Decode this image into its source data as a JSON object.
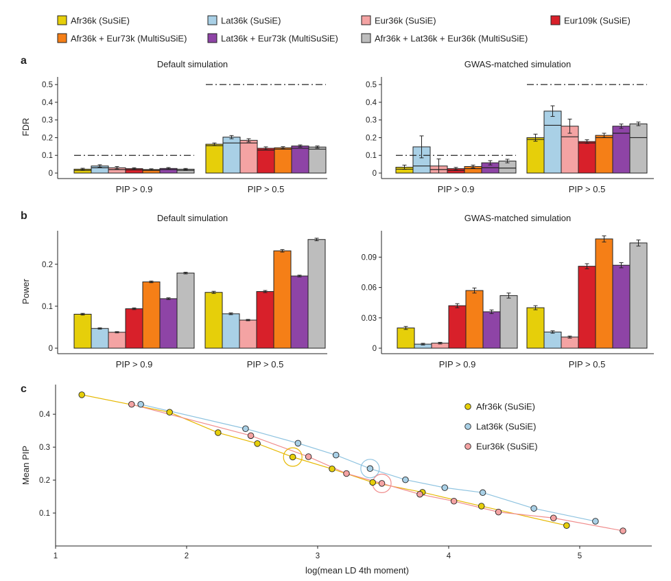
{
  "colors": {
    "afr_susie": "#e6cf0a",
    "lat_susie": "#a9d0e6",
    "eur36_susie": "#f4a3a3",
    "eur109_susie": "#d8202a",
    "afr_eur_multi": "#f57f17",
    "lat_eur_multi": "#8e44a6",
    "all_multi": "#bdbdbd"
  },
  "legend": {
    "items": [
      {
        "label": "Afr36k (SuSiE)",
        "color": "#e6cf0a"
      },
      {
        "label": "Lat36k (SuSiE)",
        "color": "#a9d0e6"
      },
      {
        "label": "Eur36k (SuSiE)",
        "color": "#f4a3a3"
      },
      {
        "label": "Eur109k (SuSiE)",
        "color": "#d8202a"
      },
      {
        "label": "Afr36k + Eur73k (MultiSuSiE)",
        "color": "#f57f17"
      },
      {
        "label": "Lat36k + Eur73k (MultiSuSiE)",
        "color": "#8e44a6"
      },
      {
        "label": "Afr36k + Lat36k + Eur36k (MultiSuSiE)",
        "color": "#bdbdbd"
      }
    ]
  },
  "panels": {
    "a": "a",
    "b": "b",
    "c": "c"
  },
  "chart_data": [
    {
      "id": "a-default",
      "type": "bar",
      "title": "Default simulation",
      "ylabel": "FDR",
      "ylim": [
        0,
        0.52
      ],
      "yticks": [
        "0",
        "0.1",
        "0.2",
        "0.3",
        "0.4",
        "0.5"
      ],
      "categories": [
        "PIP > 0.9",
        "PIP > 0.5"
      ],
      "thresholds": [
        0.1,
        0.5
      ],
      "series_values": [
        [
          0.022,
          0.04,
          0.03,
          0.025,
          0.02,
          0.026,
          0.022
        ],
        [
          0.163,
          0.203,
          0.185,
          0.14,
          0.143,
          0.153,
          0.147
        ]
      ],
      "errors": [
        [
          0.005,
          0.007,
          0.007,
          0.005,
          0.004,
          0.005,
          0.004
        ],
        [
          0.007,
          0.009,
          0.009,
          0.008,
          0.006,
          0.006,
          0.006
        ]
      ],
      "inner_lines": [
        [
          0.015,
          0.03,
          0.02,
          0.018,
          0.015,
          0.02,
          0.015
        ],
        [
          0.155,
          0.17,
          0.17,
          0.13,
          0.135,
          0.14,
          0.135
        ]
      ]
    },
    {
      "id": "a-gwas",
      "type": "bar",
      "title": "GWAS-matched simulation",
      "ylabel": "",
      "ylim": [
        0,
        0.52
      ],
      "yticks": [
        "0",
        "0.1",
        "0.2",
        "0.3",
        "0.4",
        "0.5"
      ],
      "categories": [
        "PIP > 0.9",
        "PIP > 0.5"
      ],
      "thresholds": [
        0.1,
        0.5
      ],
      "series_values": [
        [
          0.033,
          0.148,
          0.04,
          0.025,
          0.037,
          0.058,
          0.068
        ],
        [
          0.2,
          0.35,
          0.265,
          0.178,
          0.213,
          0.265,
          0.278
        ]
      ],
      "errors": [
        [
          0.012,
          0.062,
          0.04,
          0.007,
          0.008,
          0.012,
          0.01
        ],
        [
          0.02,
          0.03,
          0.04,
          0.01,
          0.012,
          0.012,
          0.01
        ]
      ],
      "inner_lines": [
        [
          0.022,
          0.04,
          0.02,
          0.015,
          0.025,
          0.03,
          0.028
        ],
        [
          0.19,
          0.27,
          0.205,
          0.17,
          0.2,
          0.225,
          0.2
        ]
      ]
    },
    {
      "id": "b-default",
      "type": "bar",
      "title": "Default simulation",
      "ylabel": "Power",
      "ylim": [
        0,
        0.27
      ],
      "yticks": [
        "0",
        "0.1",
        "0.2"
      ],
      "ytick_values": [
        0,
        0.1,
        0.2
      ],
      "categories": [
        "PIP > 0.9",
        "PIP > 0.5"
      ],
      "series_values": [
        [
          0.081,
          0.047,
          0.038,
          0.094,
          0.158,
          0.118,
          0.179
        ],
        [
          0.133,
          0.082,
          0.067,
          0.135,
          0.232,
          0.172,
          0.259
        ]
      ],
      "errors": [
        [
          0.002,
          0.0015,
          0.0015,
          0.002,
          0.002,
          0.002,
          0.002
        ],
        [
          0.0025,
          0.002,
          0.0015,
          0.0025,
          0.003,
          0.002,
          0.003
        ]
      ]
    },
    {
      "id": "b-gwas",
      "type": "bar",
      "title": "GWAS-matched simulation",
      "ylabel": "",
      "ylim": [
        0,
        0.112
      ],
      "yticks": [
        "0",
        "0.03",
        "0.06",
        "0.09"
      ],
      "ytick_values": [
        0,
        0.03,
        0.06,
        0.09
      ],
      "categories": [
        "PIP > 0.9",
        "PIP > 0.5"
      ],
      "series_values": [
        [
          0.02,
          0.004,
          0.005,
          0.042,
          0.057,
          0.036,
          0.052
        ],
        [
          0.04,
          0.016,
          0.011,
          0.081,
          0.108,
          0.082,
          0.104
        ]
      ],
      "errors": [
        [
          0.0015,
          0.0008,
          0.0008,
          0.002,
          0.0025,
          0.0018,
          0.0025
        ],
        [
          0.002,
          0.0012,
          0.001,
          0.0025,
          0.003,
          0.0025,
          0.003
        ]
      ]
    },
    {
      "id": "c-scatter",
      "type": "line",
      "xlabel": "log(mean LD 4th moment)",
      "ylabel": "Mean PIP",
      "xlim": [
        1,
        5.55
      ],
      "ylim": [
        0,
        0.49
      ],
      "xticks": [
        "1",
        "2",
        "3",
        "4",
        "5"
      ],
      "yticks": [
        "0.1",
        "0.2",
        "0.3",
        "0.4"
      ],
      "series": [
        {
          "name": "Afr36k (SuSiE)",
          "x": [
            1.2,
            1.87,
            2.24,
            2.54,
            2.81,
            3.11,
            3.42,
            3.8,
            4.25,
            4.9
          ],
          "y": [
            0.459,
            0.406,
            0.344,
            0.311,
            0.27,
            0.234,
            0.193,
            0.163,
            0.121,
            0.062
          ],
          "highlight": 4
        },
        {
          "name": "Lat36k (SuSiE)",
          "x": [
            1.65,
            2.45,
            2.85,
            3.14,
            3.4,
            3.67,
            3.97,
            4.26,
            4.65,
            5.12
          ],
          "y": [
            0.43,
            0.356,
            0.312,
            0.276,
            0.235,
            0.201,
            0.177,
            0.162,
            0.114,
            0.075
          ],
          "highlight": 4
        },
        {
          "name": "Eur36k (SuSiE)",
          "x": [
            1.58,
            2.49,
            2.93,
            3.22,
            3.49,
            3.78,
            4.04,
            4.38,
            4.8,
            5.33
          ],
          "y": [
            0.43,
            0.335,
            0.271,
            0.22,
            0.19,
            0.157,
            0.136,
            0.103,
            0.085,
            0.046
          ],
          "highlight": 4
        }
      ]
    }
  ]
}
